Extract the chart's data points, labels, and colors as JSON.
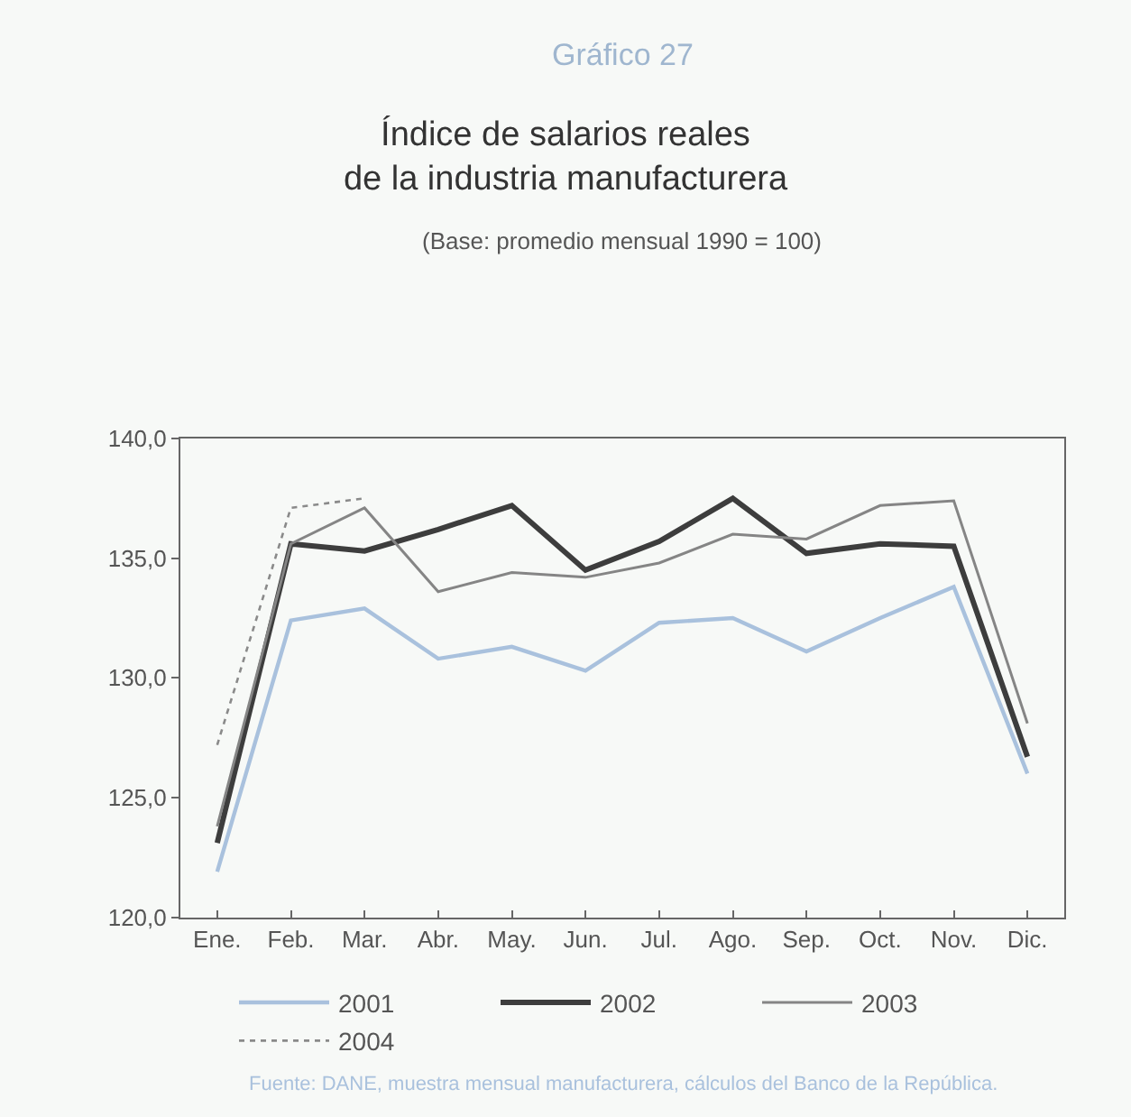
{
  "chart_data": {
    "type": "line",
    "title": "Índice de salarios reales\nde la industria manufacturera",
    "subtitle": "(Base: promedio mensual 1990 = 100)",
    "annotations": [
      "Gráfico 27",
      "Fuente: DANE, muestra mensual manufacturera, cálculos del Banco de la República."
    ],
    "categories": [
      "Ene.",
      "Feb.",
      "Mar.",
      "Abr.",
      "May.",
      "Jun.",
      "Jul.",
      "Ago.",
      "Sep.",
      "Oct.",
      "Nov.",
      "Dic."
    ],
    "series": [
      {
        "name": "2001",
        "color": "#a9c1dd",
        "line_style": "solid",
        "values": [
          121.9,
          132.4,
          132.9,
          130.8,
          131.3,
          130.3,
          132.3,
          132.5,
          131.1,
          132.5,
          133.8,
          126.0
        ]
      },
      {
        "name": "2002",
        "color": "#3d3d3d",
        "line_style": "solid",
        "values": [
          123.1,
          135.6,
          135.3,
          136.2,
          137.2,
          134.5,
          135.7,
          137.5,
          135.2,
          135.6,
          135.5,
          126.7
        ]
      },
      {
        "name": "2003",
        "color": "#858585",
        "line_style": "solid",
        "values": [
          123.8,
          135.6,
          137.1,
          133.6,
          134.4,
          134.2,
          134.8,
          136.0,
          135.8,
          137.2,
          137.4,
          128.1
        ]
      },
      {
        "name": "2004",
        "color": "#8a8a8a",
        "line_style": "dotted",
        "values": [
          127.2,
          137.1,
          137.5,
          null,
          null,
          null,
          null,
          null,
          null,
          null,
          null,
          null
        ]
      }
    ],
    "ylim": [
      120,
      140
    ],
    "yticks": [
      {
        "value": 120,
        "label": "120,0"
      },
      {
        "value": 125,
        "label": "125,0"
      },
      {
        "value": 130,
        "label": "130,0"
      },
      {
        "value": 135,
        "label": "135,0"
      },
      {
        "value": 140,
        "label": "140,0"
      }
    ],
    "grid": false,
    "legend": "bottom",
    "marker": "none"
  }
}
